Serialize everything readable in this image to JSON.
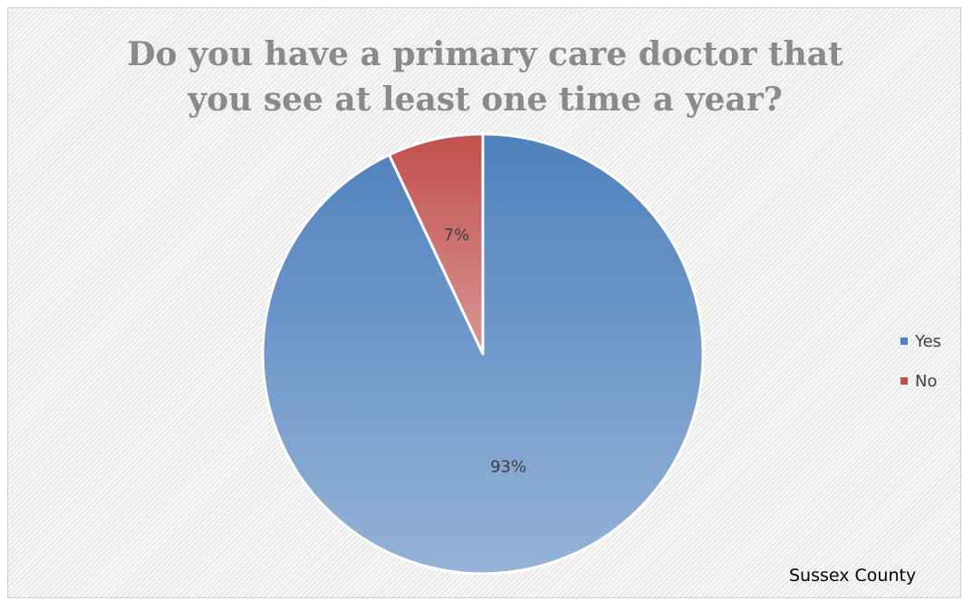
{
  "chart_data": {
    "type": "pie",
    "title_lines": [
      "Do you have a primary care doctor that",
      "you see at least one time a year?"
    ],
    "categories": [
      "Yes",
      "No"
    ],
    "values": [
      93,
      7
    ],
    "data_labels": [
      "93%",
      "7%"
    ],
    "colors": {
      "Yes": {
        "light": "#95b3d7",
        "dark": "#4f81bd"
      },
      "No": {
        "light": "#d99694",
        "dark": "#c0504d"
      }
    },
    "legend": {
      "placement": "right",
      "entries": [
        "Yes",
        "No"
      ]
    },
    "annotation": "Sussex County"
  }
}
